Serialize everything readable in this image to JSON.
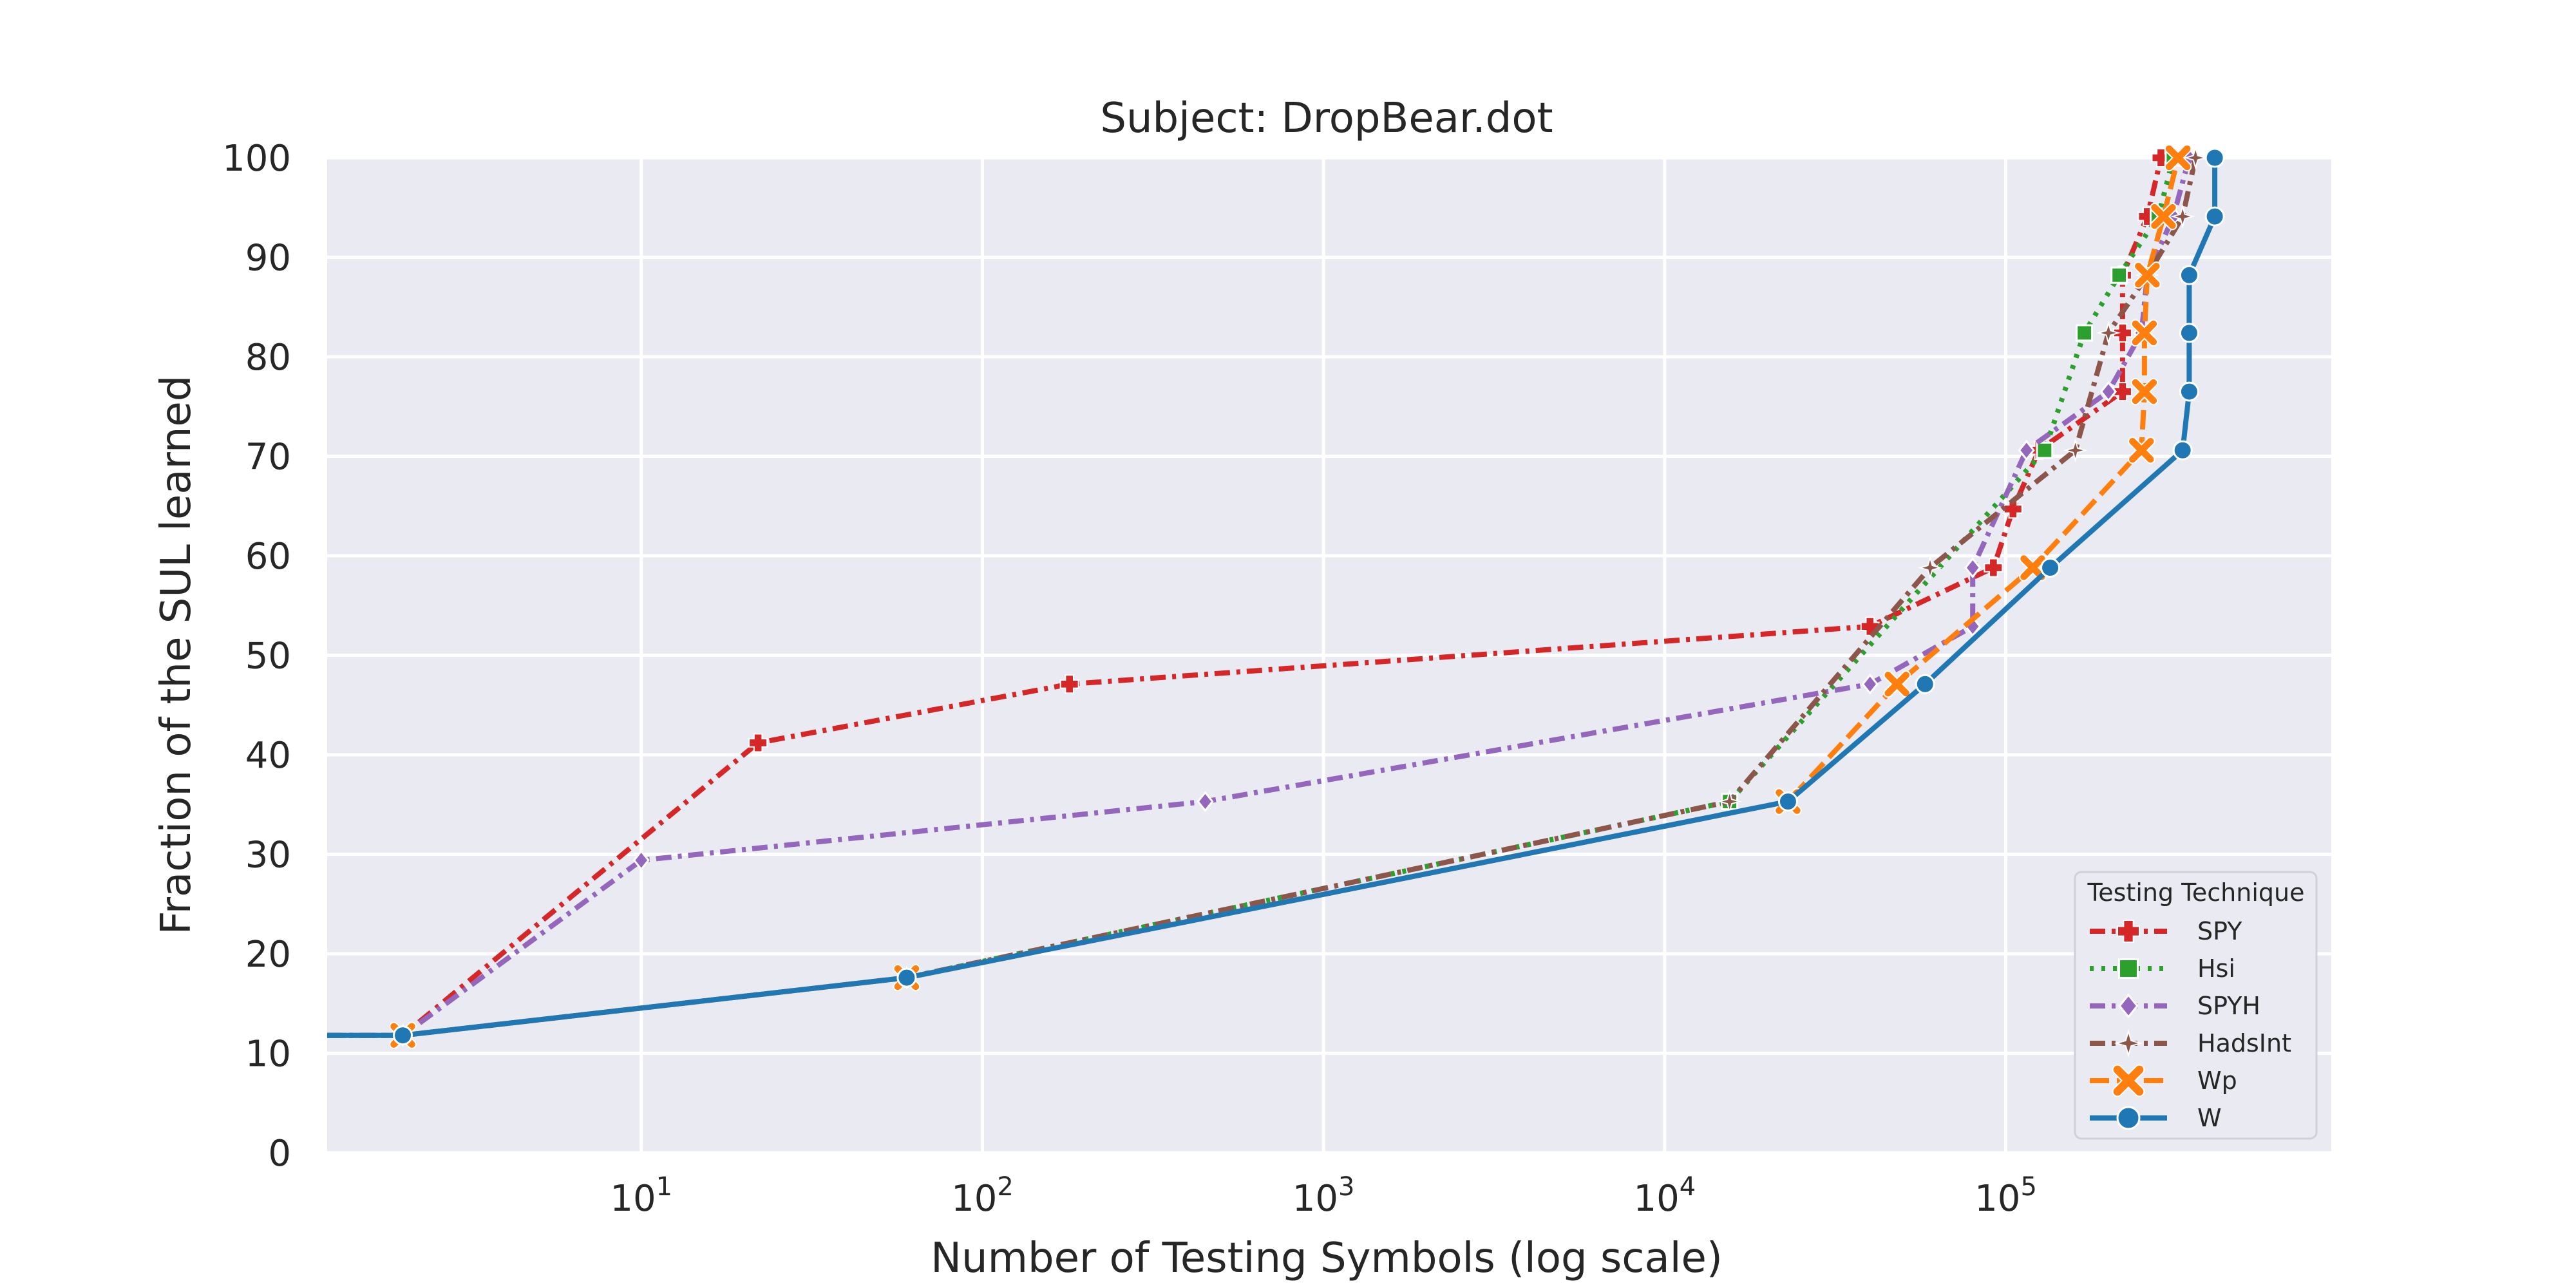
{
  "chart_data": {
    "type": "line",
    "title": "Subject: DropBear.dot",
    "xlabel": "Number of Testing Symbols (log scale)",
    "ylabel": "Fraction of the SUL learned",
    "xscale": "log",
    "xlim": [
      1.2,
      900000
    ],
    "ylim": [
      0,
      100
    ],
    "x_tick_values": [
      10,
      100,
      1000,
      10000,
      100000
    ],
    "x_tick_base": "10",
    "x_tick_exponents": [
      "1",
      "2",
      "3",
      "4",
      "5"
    ],
    "y_ticks": [
      "0",
      "10",
      "20",
      "30",
      "40",
      "50",
      "60",
      "70",
      "80",
      "90",
      "100"
    ],
    "grid": true,
    "legend_placement": "lower-right",
    "legend_title": "Testing Technique",
    "series": [
      {
        "name": "SPY",
        "color": "#d62728",
        "dash": "dashdot",
        "marker": "plus",
        "points": [
          [
            1.2,
            11.8
          ],
          [
            2,
            11.8
          ],
          [
            22,
            41.2
          ],
          [
            180,
            47.1
          ],
          [
            40000,
            52.9
          ],
          [
            92000,
            58.8
          ],
          [
            105000,
            64.7
          ],
          [
            125000,
            70.6
          ],
          [
            220000,
            76.5
          ],
          [
            220000,
            82.4
          ],
          [
            220000,
            88.2
          ],
          [
            260000,
            94.1
          ],
          [
            285000,
            100
          ]
        ]
      },
      {
        "name": "Hsi",
        "color": "#2ca02c",
        "dash": "dotted",
        "marker": "square",
        "points": [
          [
            1.2,
            11.8
          ],
          [
            2,
            11.8
          ],
          [
            60,
            17.6
          ],
          [
            15500,
            35.3
          ],
          [
            130000,
            70.6
          ],
          [
            170000,
            82.4
          ],
          [
            215000,
            88.2
          ],
          [
            280000,
            94.1
          ],
          [
            310000,
            100
          ]
        ]
      },
      {
        "name": "SPYH",
        "color": "#9467bd",
        "dash": "dashdot",
        "marker": "diamond",
        "points": [
          [
            1.2,
            11.8
          ],
          [
            2,
            11.8
          ],
          [
            10,
            29.4
          ],
          [
            450,
            35.3
          ],
          [
            40000,
            47.1
          ],
          [
            80000,
            52.9
          ],
          [
            80000,
            58.8
          ],
          [
            115000,
            70.6
          ],
          [
            200000,
            76.5
          ],
          [
            250000,
            82.4
          ],
          [
            260000,
            88.2
          ],
          [
            310000,
            94.1
          ],
          [
            345000,
            100
          ]
        ]
      },
      {
        "name": "HadsInt",
        "color": "#8c564b",
        "dash": "dashdot",
        "marker": "star",
        "points": [
          [
            1.2,
            11.8
          ],
          [
            2,
            11.8
          ],
          [
            60,
            17.6
          ],
          [
            15500,
            35.3
          ],
          [
            60000,
            58.8
          ],
          [
            160000,
            70.6
          ],
          [
            200000,
            82.4
          ],
          [
            260000,
            88.2
          ],
          [
            330000,
            94.1
          ],
          [
            360000,
            100
          ]
        ]
      },
      {
        "name": "Wp",
        "color": "#ff7f0e",
        "dash": "dashed",
        "marker": "x",
        "points": [
          [
            1.2,
            11.8
          ],
          [
            2,
            11.8
          ],
          [
            60,
            17.6
          ],
          [
            23000,
            35.3
          ],
          [
            48000,
            47.1
          ],
          [
            120000,
            58.8
          ],
          [
            250000,
            70.6
          ],
          [
            255000,
            76.5
          ],
          [
            255000,
            82.4
          ],
          [
            260000,
            88.2
          ],
          [
            290000,
            94.1
          ],
          [
            320000,
            100
          ]
        ]
      },
      {
        "name": "W",
        "color": "#1f77b4",
        "dash": "solid",
        "marker": "circle",
        "points": [
          [
            1.2,
            11.8
          ],
          [
            2,
            11.8
          ],
          [
            60,
            17.6
          ],
          [
            23000,
            35.3
          ],
          [
            58000,
            47.1
          ],
          [
            135000,
            58.8
          ],
          [
            330000,
            70.6
          ],
          [
            345000,
            76.5
          ],
          [
            345000,
            82.4
          ],
          [
            345000,
            88.2
          ],
          [
            410000,
            94.1
          ],
          [
            410000,
            100
          ]
        ]
      }
    ]
  }
}
